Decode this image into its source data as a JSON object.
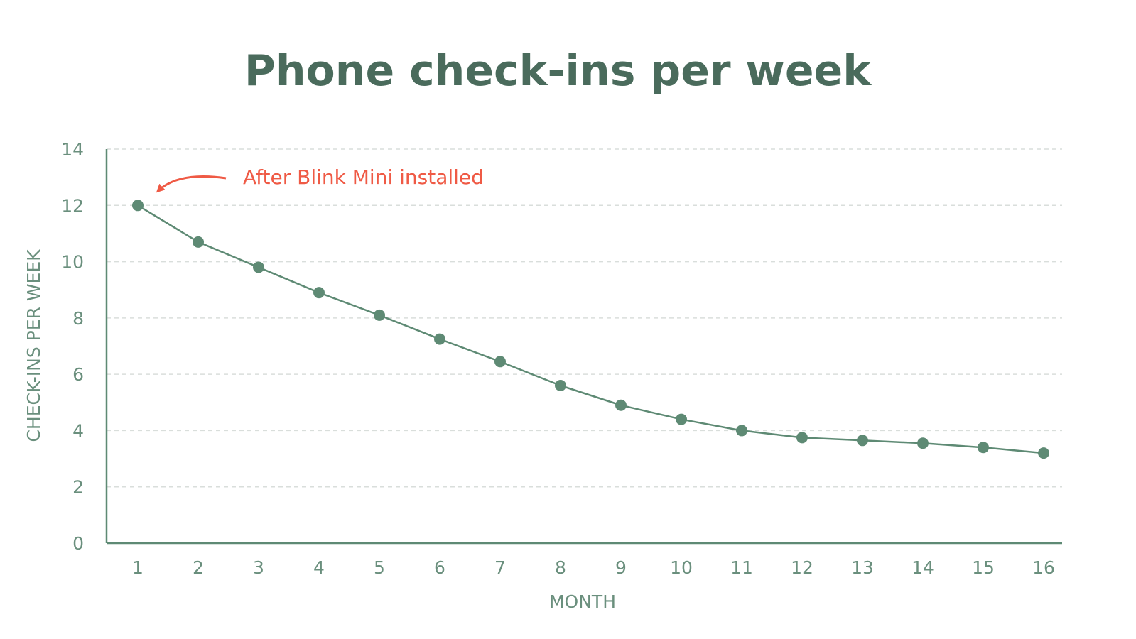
{
  "colors": {
    "title": "#4a6b5c",
    "axis": "#5e8a74",
    "tick_text": "#6a8f7d",
    "grid": "#d9dedb",
    "series": "#5e8a74",
    "annotation": "#ef5a45"
  },
  "chart_data": {
    "type": "line",
    "title": "Phone check-ins per week",
    "xlabel": "MONTH",
    "ylabel": "CHECK-INS PER WEEK",
    "x": [
      1,
      2,
      3,
      4,
      5,
      6,
      7,
      8,
      9,
      10,
      11,
      12,
      13,
      14,
      15,
      16
    ],
    "x_tick_labels": [
      "1",
      "2",
      "3",
      "4",
      "5",
      "6",
      "7",
      "8",
      "9",
      "10",
      "11",
      "12",
      "13",
      "14",
      "15",
      "16"
    ],
    "y_ticks": [
      0,
      2,
      4,
      6,
      8,
      10,
      12,
      14
    ],
    "y_tick_labels": [
      "0",
      "2",
      "4",
      "6",
      "8",
      "10",
      "12",
      "14"
    ],
    "ylim": [
      0,
      14
    ],
    "grid": true,
    "series": [
      {
        "values": [
          12.0,
          10.7,
          9.8,
          8.9,
          8.1,
          7.25,
          6.45,
          5.6,
          4.9,
          4.4,
          4.0,
          3.75,
          3.65,
          3.55,
          3.4,
          3.2
        ]
      }
    ],
    "annotation": {
      "text": "After Blink Mini installed",
      "target_x": 1,
      "target_y": 12.0
    }
  }
}
